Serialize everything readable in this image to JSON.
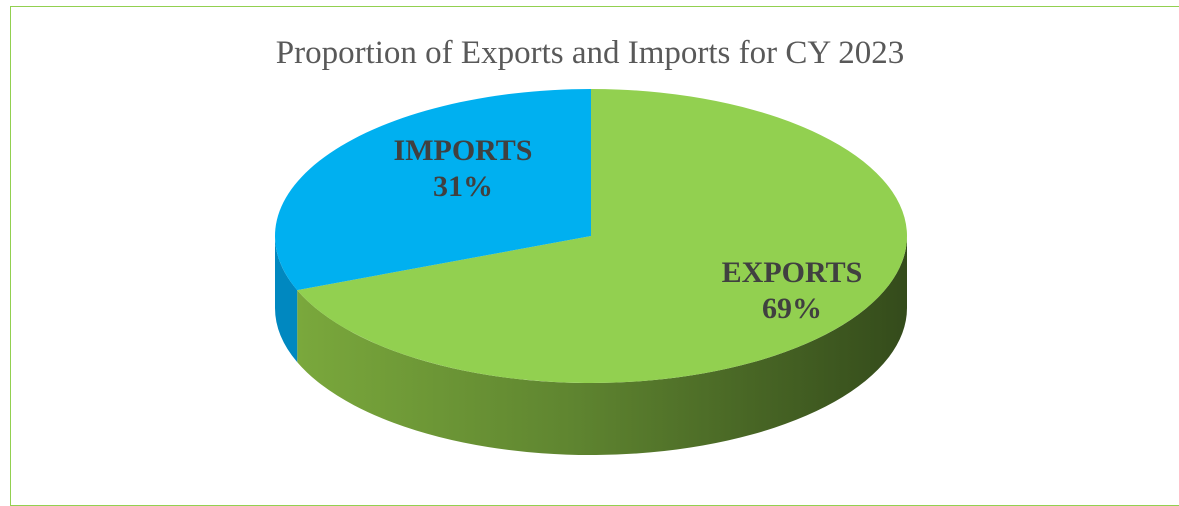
{
  "chart_data": {
    "type": "pie",
    "style": "3d",
    "title": "Proportion of Exports and Imports for CY 2023",
    "slices": [
      {
        "label": "EXPORTS",
        "value": 69,
        "value_label": "69%",
        "color": "#92d050"
      },
      {
        "label": "IMPORTS",
        "value": 31,
        "value_label": "31%",
        "color": "#00b0f0"
      }
    ],
    "border_color": "#92d050"
  }
}
